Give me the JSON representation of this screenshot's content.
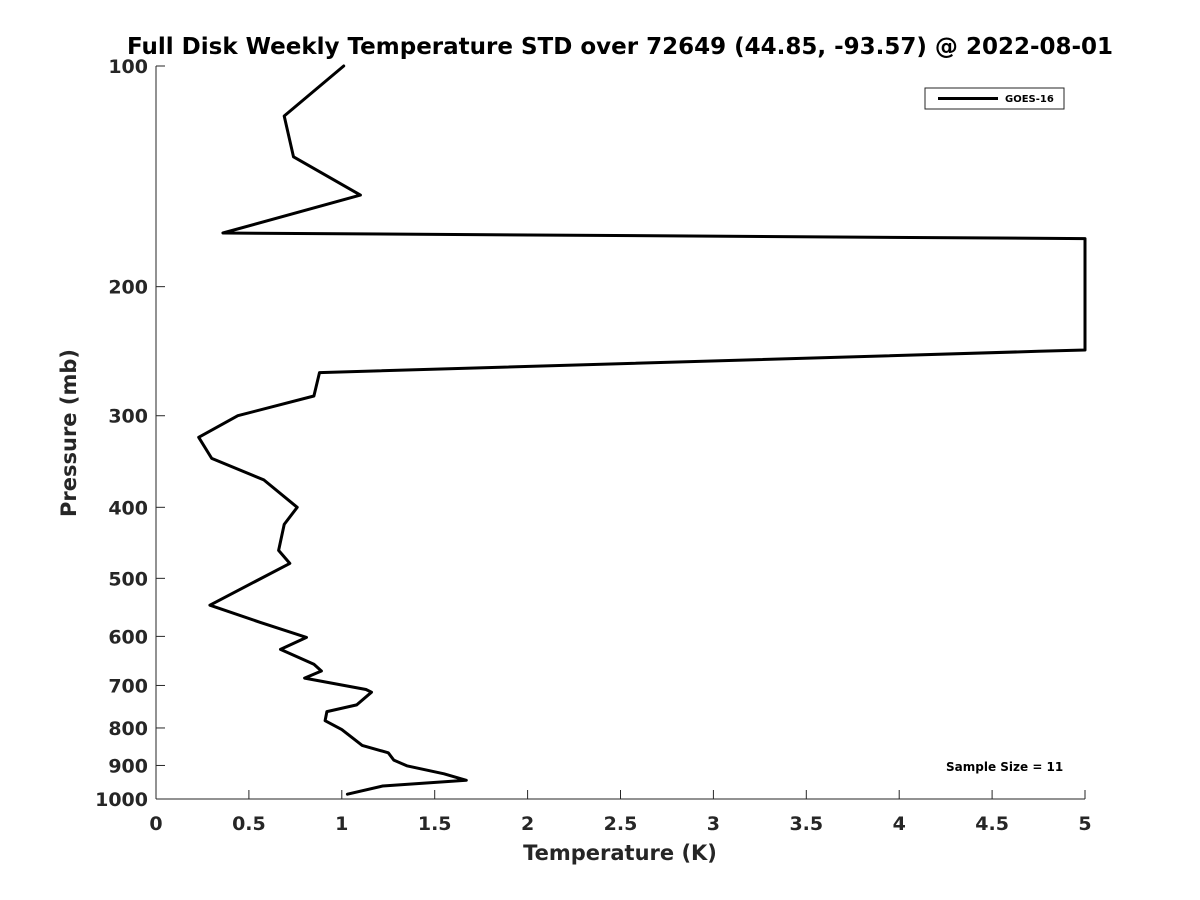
{
  "chart_data": {
    "type": "line",
    "title": "Full Disk Weekly Temperature STD over 72649 (44.85, -93.57) @ 2022-08-01",
    "xlabel": "Temperature (K)",
    "ylabel": "Pressure (mb)",
    "xlim": [
      0,
      5
    ],
    "ylim": [
      100,
      1000
    ],
    "y_scale": "log",
    "y_reversed": true,
    "grid": false,
    "legend_position": "top-right",
    "x_ticks": [
      "0",
      "0.5",
      "1",
      "1.5",
      "2",
      "2.5",
      "3",
      "3.5",
      "4",
      "4.5",
      "5"
    ],
    "y_ticks": [
      "100",
      "200",
      "300",
      "400",
      "500",
      "600",
      "700",
      "800",
      "900",
      "1000"
    ],
    "annotation": "Sample Size = 11",
    "series": [
      {
        "name": "GOES-16",
        "color": "#000000",
        "points": [
          {
            "t": 1.01,
            "p": 100
          },
          {
            "t": 0.69,
            "p": 117
          },
          {
            "t": 0.74,
            "p": 133
          },
          {
            "t": 1.1,
            "p": 150
          },
          {
            "t": 0.36,
            "p": 169
          },
          {
            "t": 5.0,
            "p": 172
          },
          {
            "t": 5.0,
            "p": 244
          },
          {
            "t": 4.75,
            "p": 245
          },
          {
            "t": 0.88,
            "p": 262
          },
          {
            "t": 0.85,
            "p": 282
          },
          {
            "t": 0.44,
            "p": 300
          },
          {
            "t": 0.23,
            "p": 321
          },
          {
            "t": 0.3,
            "p": 343
          },
          {
            "t": 0.58,
            "p": 367
          },
          {
            "t": 0.76,
            "p": 400
          },
          {
            "t": 0.69,
            "p": 422
          },
          {
            "t": 0.66,
            "p": 458
          },
          {
            "t": 0.72,
            "p": 477
          },
          {
            "t": 0.29,
            "p": 544
          },
          {
            "t": 0.56,
            "p": 574
          },
          {
            "t": 0.81,
            "p": 602
          },
          {
            "t": 0.67,
            "p": 625
          },
          {
            "t": 0.85,
            "p": 655
          },
          {
            "t": 0.89,
            "p": 669
          },
          {
            "t": 0.8,
            "p": 684
          },
          {
            "t": 1.13,
            "p": 709
          },
          {
            "t": 1.16,
            "p": 715
          },
          {
            "t": 1.08,
            "p": 744
          },
          {
            "t": 0.92,
            "p": 760
          },
          {
            "t": 0.91,
            "p": 782
          },
          {
            "t": 1.0,
            "p": 804
          },
          {
            "t": 1.11,
            "p": 845
          },
          {
            "t": 1.25,
            "p": 865
          },
          {
            "t": 1.28,
            "p": 885
          },
          {
            "t": 1.35,
            "p": 901
          },
          {
            "t": 1.55,
            "p": 924
          },
          {
            "t": 1.67,
            "p": 943
          },
          {
            "t": 1.22,
            "p": 960
          },
          {
            "t": 1.03,
            "p": 985
          }
        ]
      }
    ]
  }
}
